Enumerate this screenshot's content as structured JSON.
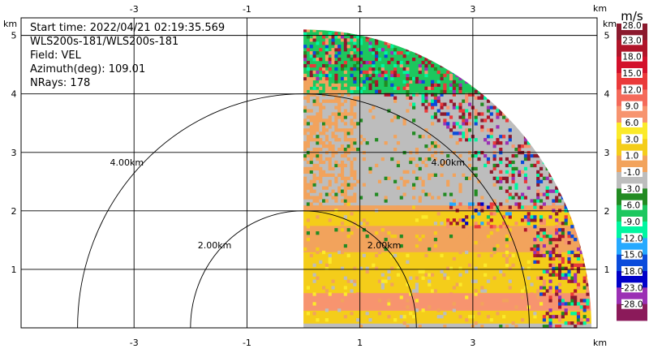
{
  "info": {
    "start_time": "Start time: 2022/04/21 02:19:35.569",
    "instrument": "WLS200s-181/WLS200s-181",
    "field": "Field: VEL",
    "azimuth": "Azimuth(deg): 109.01",
    "nrays": "NRays: 178"
  },
  "colorbar": {
    "unit": "m/s",
    "labels": [
      "28.0",
      "23.0",
      "18.0",
      "15.0",
      "12.0",
      "9.0",
      "6.0",
      "3.0",
      "1.0",
      "-1.0",
      "-3.0",
      "-6.0",
      "-9.0",
      "-12.0",
      "-15.0",
      "-18.0",
      "-23.0",
      "-28.0"
    ],
    "colors": [
      "#8b1a2e",
      "#b0152a",
      "#d3102b",
      "#ea3a3a",
      "#f46a5a",
      "#f7946f",
      "#fbea2a",
      "#f4cd1a",
      "#f2a35c",
      "#bdbdbd",
      "#228b22",
      "#1dc75e",
      "#00f6a0",
      "#26a9ff",
      "#0a4bdb",
      "#0000c8",
      "#9b30b4",
      "#8b1a5a"
    ]
  },
  "chart_data": {
    "type": "heatmap",
    "projection": "range-height",
    "field": "VEL",
    "unit": "m/s",
    "x_unit": "km",
    "y_unit": "km",
    "xlim": [
      -5,
      5.2
    ],
    "ylim": [
      0,
      5.3
    ],
    "xticks": [
      -3,
      -1,
      1,
      3
    ],
    "xtick_labels": [
      "-3",
      "-1",
      "1",
      "3"
    ],
    "yticks": [
      1,
      2,
      3,
      4,
      5
    ],
    "ytick_labels": [
      "1",
      "2",
      "3",
      "4",
      "5"
    ],
    "grid": true,
    "range_rings": [
      {
        "range_km": 2,
        "label": "2.00km"
      },
      {
        "range_km": 4,
        "label": "4.00km"
      }
    ],
    "scan_sector_x_km": [
      0.0,
      5.1
    ],
    "max_range_km": 5.1,
    "velocity_bands": [
      {
        "y_min": 0.0,
        "y_max": 0.08,
        "velocity": -3.0
      },
      {
        "y_min": 0.08,
        "y_max": 0.3,
        "velocity": 1.0
      },
      {
        "y_min": 0.3,
        "y_max": 0.6,
        "velocity": 6.0
      },
      {
        "y_min": 0.6,
        "y_max": 0.95,
        "velocity": 1.0
      },
      {
        "y_min": 0.95,
        "y_max": 1.3,
        "velocity": 1.0
      },
      {
        "y_min": 1.3,
        "y_max": 1.75,
        "velocity": -1.0
      },
      {
        "y_min": 1.75,
        "y_max": 2.0,
        "velocity": 1.0
      },
      {
        "y_min": 2.0,
        "y_max": 2.1,
        "velocity": -1.0
      },
      {
        "y_min": 2.1,
        "y_max": 4.0,
        "velocity": -3.0
      },
      {
        "y_min": 4.0,
        "y_max": 5.1,
        "velocity": -9.0
      }
    ]
  }
}
